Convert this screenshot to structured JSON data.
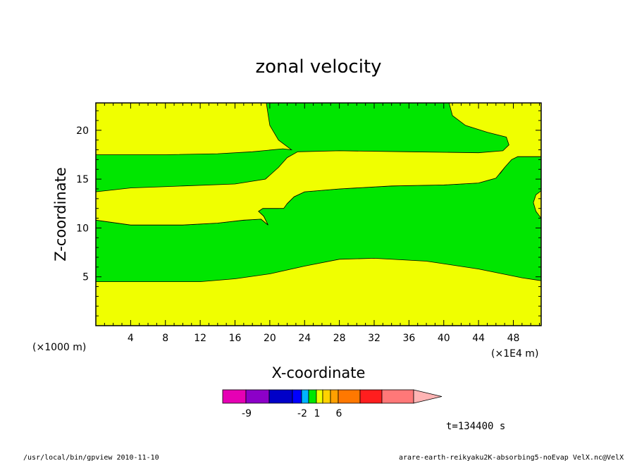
{
  "chart_data": {
    "type": "contour",
    "title": "zonal velocity",
    "xlabel": "X-coordinate",
    "ylabel": "Z-coordinate",
    "x_unit": "(×1E4 m)",
    "y_unit": "(×1000 m)",
    "x_ticks": [
      4,
      8,
      12,
      16,
      20,
      24,
      28,
      32,
      36,
      40,
      44,
      48
    ],
    "y_ticks": [
      5,
      10,
      15,
      20
    ],
    "xlim": [
      0,
      51.2
    ],
    "ylim": [
      0,
      22.8
    ],
    "fill_colors": {
      "positive": "#f0ff00",
      "near_zero": "#00e600"
    },
    "regions": [
      {
        "level": "positive",
        "boundary": [
          [
            0,
            0
          ],
          [
            51.2,
            0
          ],
          [
            51.2,
            4.6
          ],
          [
            49,
            4.9
          ],
          [
            44,
            5.8
          ],
          [
            38,
            6.6
          ],
          [
            32,
            6.9
          ],
          [
            28,
            6.8
          ],
          [
            24,
            6.1
          ],
          [
            20,
            5.3
          ],
          [
            16,
            4.8
          ],
          [
            12,
            4.5
          ],
          [
            0,
            4.5
          ]
        ]
      },
      {
        "level": "positive",
        "boundary": [
          [
            0,
            10.8
          ],
          [
            4,
            10.3
          ],
          [
            10,
            10.3
          ],
          [
            14,
            10.5
          ],
          [
            17,
            10.8
          ],
          [
            19,
            10.9
          ],
          [
            19.8,
            10.3
          ],
          [
            19.3,
            11.2
          ],
          [
            18.7,
            11.7
          ],
          [
            19.2,
            12.0
          ],
          [
            21,
            12.0
          ],
          [
            22,
            12.5
          ],
          [
            22.8,
            13.2
          ],
          [
            24,
            13.7
          ],
          [
            28,
            14.0
          ],
          [
            34,
            14.3
          ],
          [
            40,
            14.4
          ],
          [
            44,
            14.6
          ],
          [
            46,
            15.1
          ],
          [
            47,
            16.2
          ],
          [
            47.8,
            17.0
          ],
          [
            48.5,
            17.3
          ],
          [
            51.2,
            17.3
          ],
          [
            51.2,
            22.8
          ],
          [
            50,
            22.8
          ],
          [
            51.2,
            22.8
          ],
          [
            51.2,
            17.3
          ],
          [
            48.5,
            17.3
          ],
          [
            47.8,
            17.0
          ],
          [
            47,
            16.2
          ],
          [
            46.5,
            15.6
          ],
          [
            45.5,
            15.0
          ],
          [
            44,
            14.6
          ],
          [
            40,
            14.4
          ],
          [
            34,
            14.3
          ],
          [
            28,
            14.0
          ],
          [
            24,
            13.7
          ],
          [
            22.8,
            13.2
          ],
          [
            22,
            12.5
          ],
          [
            21,
            12.0
          ],
          [
            0,
            12.0
          ]
        ]
      },
      {
        "level": "positive",
        "boundary": [
          [
            0,
            13.7
          ],
          [
            4,
            14.1
          ],
          [
            10,
            14.3
          ],
          [
            16,
            14.5
          ],
          [
            19.5,
            15.0
          ],
          [
            21,
            16.2
          ],
          [
            22,
            17.2
          ],
          [
            23.2,
            17.8
          ],
          [
            28,
            17.9
          ],
          [
            36,
            17.8
          ],
          [
            44,
            17.7
          ],
          [
            46.8,
            17.9
          ],
          [
            47.5,
            18.5
          ],
          [
            47.2,
            19.3
          ],
          [
            45,
            19.8
          ],
          [
            42.5,
            20.5
          ],
          [
            41,
            21.5
          ],
          [
            40.6,
            22.8
          ],
          [
            51.2,
            22.8
          ],
          [
            51.2,
            17.3
          ],
          [
            48.5,
            17.3
          ],
          [
            47.8,
            17.0
          ],
          [
            47,
            16.2
          ],
          [
            46,
            15.1
          ],
          [
            44,
            14.6
          ],
          [
            40,
            14.4
          ],
          [
            34,
            14.3
          ],
          [
            28,
            14.0
          ],
          [
            24,
            13.7
          ],
          [
            22.8,
            13.2
          ],
          [
            22,
            12.5
          ],
          [
            21.6,
            12.0
          ],
          [
            21,
            12.0
          ],
          [
            19.2,
            12.0
          ],
          [
            18.7,
            11.7
          ],
          [
            19.3,
            11.2
          ],
          [
            19.8,
            10.3
          ],
          [
            19,
            10.9
          ],
          [
            17,
            10.8
          ],
          [
            14,
            10.5
          ],
          [
            10,
            10.3
          ],
          [
            4,
            10.3
          ],
          [
            0,
            10.8
          ]
        ]
      },
      {
        "level": "positive",
        "boundary": [
          [
            0,
            17.5
          ],
          [
            8,
            17.5
          ],
          [
            14,
            17.6
          ],
          [
            18,
            17.8
          ],
          [
            21.5,
            18.1
          ],
          [
            22.5,
            18.0
          ],
          [
            21,
            19.0
          ],
          [
            20,
            20.5
          ],
          [
            19.6,
            22.8
          ],
          [
            0,
            22.8
          ]
        ]
      },
      {
        "level": "positive",
        "boundary": [
          [
            51.2,
            13.8
          ],
          [
            50.6,
            13.4
          ],
          [
            50.3,
            12.6
          ],
          [
            50.6,
            11.7
          ],
          [
            51.2,
            11.0
          ]
        ]
      }
    ],
    "colorbar": {
      "tick_labels": [
        "-9",
        "-2",
        "1",
        "6"
      ],
      "colors": [
        "#e600b4",
        "#8c00c8",
        "#0000c8",
        "#0000ff",
        "#00b4ff",
        "#00e600",
        "#f0ff00",
        "#ffd200",
        "#ffa000",
        "#ff7800",
        "#ff1e1e",
        "#ff7878",
        "#ffb4b4"
      ]
    },
    "time_label": "t=134400 s"
  },
  "footer": {
    "left": "/usr/local/bin/gpview  2010-11-10",
    "right": "arare-earth-reikyaku2K-absorbing5-noEvap_VelX.nc@VelX"
  }
}
